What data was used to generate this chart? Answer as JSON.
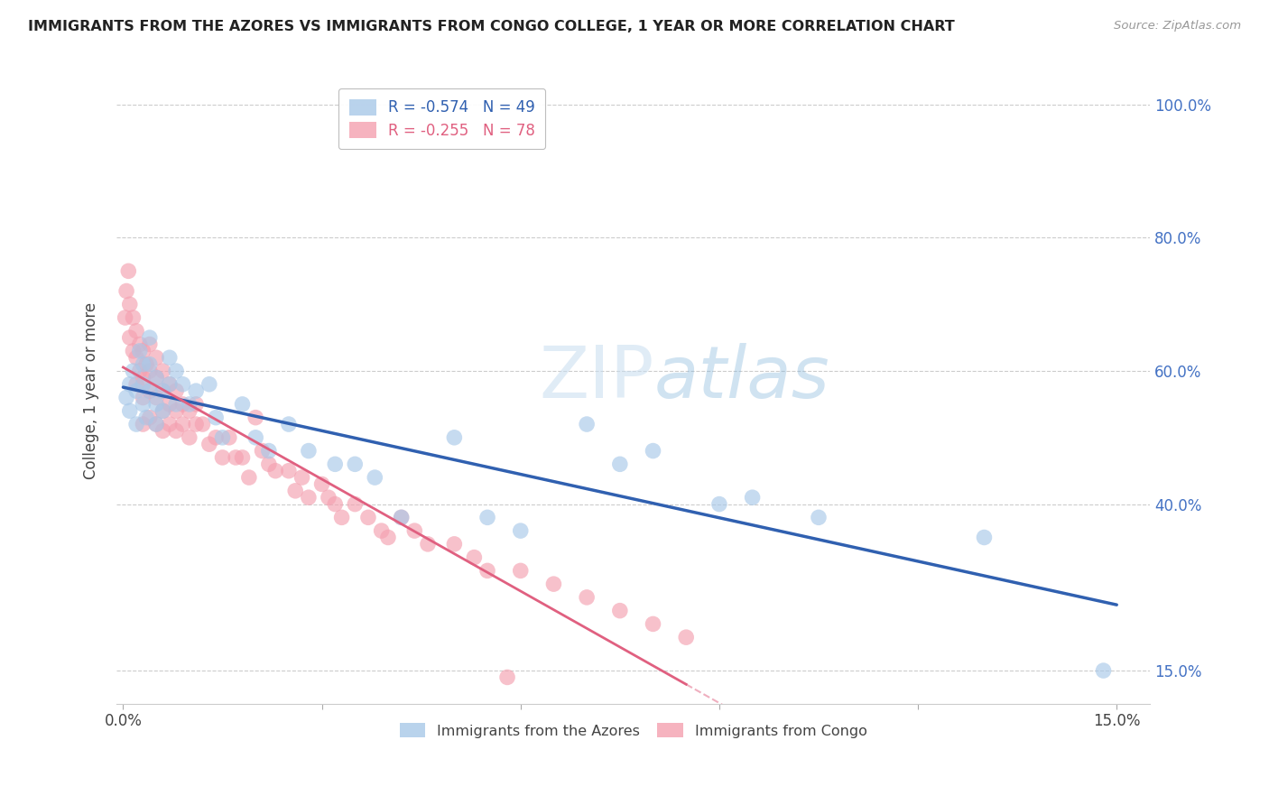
{
  "title": "IMMIGRANTS FROM THE AZORES VS IMMIGRANTS FROM CONGO COLLEGE, 1 YEAR OR MORE CORRELATION CHART",
  "source": "Source: ZipAtlas.com",
  "ylabel": "College, 1 year or more",
  "azores_color": "#a8c8e8",
  "congo_color": "#f4a0b0",
  "azores_line_color": "#3060b0",
  "congo_line_color": "#e06080",
  "azores_R": -0.574,
  "azores_N": 49,
  "congo_R": -0.255,
  "congo_N": 78,
  "watermark_zip": "ZIP",
  "watermark_atlas": "atlas",
  "xlim": [
    -0.001,
    0.155
  ],
  "ylim": [
    0.1,
    1.04
  ],
  "y_ticks": [
    0.15,
    0.4,
    0.6,
    0.8,
    1.0
  ],
  "y_tick_labels": [
    "15.0%",
    "40.0%",
    "60.0%",
    "80.0%",
    "100.0%"
  ],
  "x_ticks": [
    0.0,
    0.03,
    0.06,
    0.09,
    0.12,
    0.15
  ],
  "x_tick_labels": [
    "0.0%",
    "",
    "",
    "",
    "",
    "15.0%"
  ],
  "azores_x": [
    0.0005,
    0.001,
    0.001,
    0.0015,
    0.002,
    0.002,
    0.0025,
    0.003,
    0.003,
    0.003,
    0.0035,
    0.004,
    0.004,
    0.004,
    0.005,
    0.005,
    0.005,
    0.006,
    0.006,
    0.007,
    0.007,
    0.008,
    0.008,
    0.009,
    0.01,
    0.011,
    0.013,
    0.014,
    0.015,
    0.018,
    0.02,
    0.022,
    0.025,
    0.028,
    0.032,
    0.035,
    0.038,
    0.042,
    0.05,
    0.055,
    0.06,
    0.07,
    0.075,
    0.08,
    0.09,
    0.095,
    0.105,
    0.13,
    0.148
  ],
  "azores_y": [
    0.56,
    0.58,
    0.54,
    0.6,
    0.57,
    0.52,
    0.63,
    0.61,
    0.58,
    0.55,
    0.53,
    0.65,
    0.61,
    0.57,
    0.59,
    0.55,
    0.52,
    0.57,
    0.54,
    0.62,
    0.58,
    0.6,
    0.55,
    0.58,
    0.55,
    0.57,
    0.58,
    0.53,
    0.5,
    0.55,
    0.5,
    0.48,
    0.52,
    0.48,
    0.46,
    0.46,
    0.44,
    0.38,
    0.5,
    0.38,
    0.36,
    0.52,
    0.46,
    0.48,
    0.4,
    0.41,
    0.38,
    0.35,
    0.15
  ],
  "congo_x": [
    0.0003,
    0.0005,
    0.0008,
    0.001,
    0.001,
    0.0015,
    0.0015,
    0.002,
    0.002,
    0.002,
    0.0025,
    0.0025,
    0.003,
    0.003,
    0.003,
    0.003,
    0.0035,
    0.004,
    0.004,
    0.004,
    0.004,
    0.005,
    0.005,
    0.005,
    0.005,
    0.006,
    0.006,
    0.006,
    0.006,
    0.007,
    0.007,
    0.007,
    0.008,
    0.008,
    0.008,
    0.009,
    0.009,
    0.01,
    0.01,
    0.011,
    0.011,
    0.012,
    0.013,
    0.014,
    0.015,
    0.016,
    0.017,
    0.018,
    0.019,
    0.02,
    0.021,
    0.022,
    0.023,
    0.025,
    0.026,
    0.027,
    0.028,
    0.03,
    0.031,
    0.032,
    0.033,
    0.035,
    0.037,
    0.039,
    0.04,
    0.042,
    0.044,
    0.046,
    0.05,
    0.053,
    0.055,
    0.058,
    0.06,
    0.065,
    0.07,
    0.075,
    0.08,
    0.085
  ],
  "congo_y": [
    0.68,
    0.72,
    0.75,
    0.7,
    0.65,
    0.68,
    0.63,
    0.66,
    0.62,
    0.58,
    0.64,
    0.6,
    0.63,
    0.59,
    0.56,
    0.52,
    0.61,
    0.64,
    0.6,
    0.57,
    0.53,
    0.62,
    0.59,
    0.56,
    0.52,
    0.6,
    0.57,
    0.54,
    0.51,
    0.58,
    0.55,
    0.52,
    0.57,
    0.54,
    0.51,
    0.55,
    0.52,
    0.54,
    0.5,
    0.55,
    0.52,
    0.52,
    0.49,
    0.5,
    0.47,
    0.5,
    0.47,
    0.47,
    0.44,
    0.53,
    0.48,
    0.46,
    0.45,
    0.45,
    0.42,
    0.44,
    0.41,
    0.43,
    0.41,
    0.4,
    0.38,
    0.4,
    0.38,
    0.36,
    0.35,
    0.38,
    0.36,
    0.34,
    0.34,
    0.32,
    0.3,
    0.14,
    0.3,
    0.28,
    0.26,
    0.24,
    0.22,
    0.2
  ]
}
